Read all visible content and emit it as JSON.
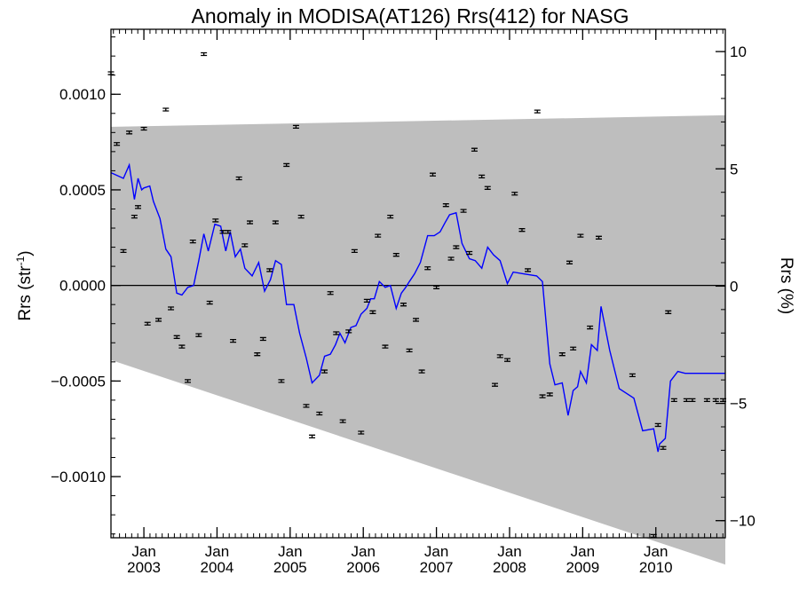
{
  "chart_data": {
    "type": "scatter",
    "title": "Anomaly in MODISA(AT126) Rrs(412) for NASG",
    "ylabel_left": "Rrs (str",
    "ylabel_left_sup": "-1",
    "ylabel_left_close": ")",
    "ylabel_right": "Rrs (%)",
    "xlim": [
      2002.55,
      2010.95
    ],
    "ylim": [
      -0.00132,
      0.00134
    ],
    "ylim_percent": [
      -10.73,
      10.95
    ],
    "y_ticks": [
      {
        "value": 0.001,
        "label": "0.0010"
      },
      {
        "value": 0.0005,
        "label": "0.0005"
      },
      {
        "value": 0.0,
        "label": "0.0000"
      },
      {
        "value": -0.0005,
        "label": "−0.0005"
      },
      {
        "value": -0.001,
        "label": "−0.0010"
      }
    ],
    "y_right_ticks": [
      {
        "value": 10,
        "label": "10"
      },
      {
        "value": 5,
        "label": "5"
      },
      {
        "value": 0,
        "label": "0"
      },
      {
        "value": -5,
        "label": "−5"
      },
      {
        "value": -10,
        "label": "−10"
      }
    ],
    "x_ticks": [
      {
        "value": 2003.0,
        "month": "Jan",
        "year": "2003"
      },
      {
        "value": 2004.0,
        "month": "Jan",
        "year": "2004"
      },
      {
        "value": 2005.0,
        "month": "Jan",
        "year": "2005"
      },
      {
        "value": 2006.0,
        "month": "Jan",
        "year": "2006"
      },
      {
        "value": 2007.0,
        "month": "Jan",
        "year": "2007"
      },
      {
        "value": 2008.0,
        "month": "Jan",
        "year": "2008"
      },
      {
        "value": 2009.0,
        "month": "Jan",
        "year": "2009"
      },
      {
        "value": 2010.0,
        "month": "Jan",
        "year": "2010"
      }
    ],
    "shaded_band": {
      "color": "#bebebe",
      "upper": [
        [
          2002.55,
          0.00083
        ],
        [
          2010.95,
          0.00089
        ]
      ],
      "lower": [
        [
          2002.55,
          -0.00039
        ],
        [
          2010.95,
          -0.00146
        ]
      ]
    },
    "zero_line": 0.0,
    "series": [
      {
        "kind": "points_with_error_bars",
        "color": "#000000",
        "error": 7e-06,
        "x": [
          2002.55,
          2002.63,
          2002.72,
          2002.8,
          2002.87,
          2002.92,
          2003.0,
          2003.05,
          2003.2,
          2003.3,
          2003.37,
          2003.45,
          2003.52,
          2003.6,
          2003.67,
          2003.75,
          2003.82,
          2003.9,
          2003.98,
          2004.08,
          2004.15,
          2004.22,
          2004.3,
          2004.38,
          2004.45,
          2004.55,
          2004.63,
          2004.72,
          2004.8,
          2004.88,
          2004.95,
          2005.08,
          2005.15,
          2005.22,
          2005.3,
          2005.4,
          2005.47,
          2005.55,
          2005.63,
          2005.72,
          2005.8,
          2005.88,
          2005.97,
          2006.05,
          2006.13,
          2006.2,
          2006.3,
          2006.37,
          2006.45,
          2006.55,
          2006.63,
          2006.72,
          2006.8,
          2006.88,
          2006.95,
          2007.0,
          2007.13,
          2007.2,
          2007.27,
          2007.37,
          2007.45,
          2007.52,
          2007.62,
          2007.7,
          2007.8,
          2007.87,
          2007.97,
          2008.07,
          2008.17,
          2008.25,
          2008.38,
          2008.45,
          2008.55,
          2008.72,
          2008.82,
          2008.87,
          2008.97,
          2009.1,
          2009.22,
          2009.68,
          2009.97,
          2010.03,
          2010.1,
          2010.17,
          2010.25,
          2010.42,
          2010.5,
          2010.7,
          2010.82,
          2010.92
        ],
        "y": [
          0.00111,
          0.00074,
          0.00018,
          0.0008,
          0.00036,
          0.00041,
          0.00082,
          -0.0002,
          -0.00018,
          0.00092,
          -0.00012,
          -0.00027,
          -0.00032,
          -0.0005,
          0.00023,
          -0.00026,
          0.00121,
          -9e-05,
          0.00034,
          0.00028,
          0.00028,
          -0.00029,
          0.00056,
          0.00021,
          0.00033,
          -0.00036,
          -0.00028,
          8e-05,
          0.00033,
          -0.0005,
          0.00063,
          0.00083,
          0.00036,
          -0.00063,
          -0.00079,
          -0.00067,
          -0.00045,
          -4e-05,
          -0.00025,
          -0.00071,
          -0.00024,
          0.00018,
          -0.00077,
          -8e-05,
          -0.00014,
          0.00026,
          -0.00032,
          0.00036,
          0.00016,
          -0.0001,
          -0.00034,
          -0.00018,
          -0.00045,
          9e-05,
          0.00058,
          -1e-05,
          0.00042,
          0.00014,
          0.0002,
          0.00039,
          0.00017,
          0.00071,
          0.00057,
          0.00051,
          -0.00052,
          -0.00037,
          -0.00039,
          0.00048,
          0.00029,
          8e-05,
          0.00091,
          -0.00058,
          -0.00057,
          -0.00036,
          0.00012,
          -0.00033,
          0.00026,
          -0.00022,
          0.00025,
          -0.00047,
          -0.00131,
          -0.00073,
          -0.00085,
          -0.00014,
          -0.0006,
          -0.0006,
          -0.0006,
          -0.0006,
          -0.0006,
          -0.0006
        ]
      },
      {
        "kind": "line",
        "color": "#0000ff",
        "x": [
          2002.55,
          2002.72,
          2002.8,
          2002.87,
          2002.92,
          2002.97,
          2003.0,
          2003.08,
          2003.13,
          2003.22,
          2003.3,
          2003.37,
          2003.45,
          2003.52,
          2003.6,
          2003.68,
          2003.75,
          2003.82,
          2003.88,
          2003.97,
          2004.05,
          2004.12,
          2004.18,
          2004.25,
          2004.32,
          2004.38,
          2004.48,
          2004.57,
          2004.65,
          2004.73,
          2004.8,
          2004.88,
          2004.95,
          2005.05,
          2005.13,
          2005.22,
          2005.3,
          2005.4,
          2005.47,
          2005.55,
          2005.62,
          2005.68,
          2005.75,
          2005.83,
          2005.9,
          2005.97,
          2006.05,
          2006.1,
          2006.15,
          2006.22,
          2006.3,
          2006.37,
          2006.45,
          2006.52,
          2006.58,
          2006.63,
          2006.7,
          2006.78,
          2006.88,
          2006.97,
          2007.05,
          2007.12,
          2007.18,
          2007.27,
          2007.35,
          2007.45,
          2007.53,
          2007.62,
          2007.7,
          2007.78,
          2007.87,
          2007.97,
          2008.05,
          2008.2,
          2008.37,
          2008.45,
          2008.55,
          2008.62,
          2008.72,
          2008.8,
          2008.87,
          2008.93,
          2008.97,
          2009.05,
          2009.12,
          2009.2,
          2009.25,
          2009.37,
          2009.5,
          2009.7,
          2009.82,
          2009.97,
          2010.03,
          2010.05,
          2010.13,
          2010.2,
          2010.3,
          2010.4,
          2010.47,
          2010.57,
          2010.67,
          2010.75,
          2010.85,
          2010.95
        ],
        "y": [
          0.00059,
          0.00056,
          0.00063,
          0.00045,
          0.00056,
          0.0005,
          0.00051,
          0.00052,
          0.00044,
          0.00035,
          0.00019,
          0.00015,
          -4e-05,
          -5e-05,
          -1e-05,
          0.0,
          0.00013,
          0.00027,
          0.00018,
          0.00032,
          0.00031,
          0.00018,
          0.00028,
          0.00015,
          0.00019,
          9e-05,
          5e-05,
          0.00012,
          -3e-05,
          3e-05,
          0.00013,
          0.00011,
          -0.0001,
          -0.0001,
          -0.00025,
          -0.00038,
          -0.00051,
          -0.00047,
          -0.00037,
          -0.00036,
          -0.00031,
          -0.00025,
          -0.0003,
          -0.00022,
          -0.00021,
          -0.00015,
          -0.00012,
          -7e-05,
          -7e-05,
          2e-05,
          -1e-05,
          0.0,
          -0.00012,
          -4e-05,
          -1e-05,
          2e-05,
          6e-05,
          0.00012,
          0.00026,
          0.00026,
          0.00028,
          0.00033,
          0.00037,
          0.00038,
          0.00022,
          0.00014,
          0.00013,
          9e-05,
          0.0002,
          0.00016,
          0.00013,
          1e-05,
          7e-05,
          6e-05,
          5e-05,
          2e-05,
          -0.00041,
          -0.00052,
          -0.00051,
          -0.00068,
          -0.00055,
          -0.00053,
          -0.00045,
          -0.00051,
          -0.00031,
          -0.00034,
          -0.00011,
          -0.00034,
          -0.00054,
          -0.00059,
          -0.00076,
          -0.00075,
          -0.00087,
          -0.00083,
          -0.0008,
          -0.0005,
          -0.00045,
          -0.00046,
          -0.00046,
          -0.00046,
          -0.00046,
          -0.00046,
          -0.00046,
          -0.00046
        ]
      }
    ]
  }
}
